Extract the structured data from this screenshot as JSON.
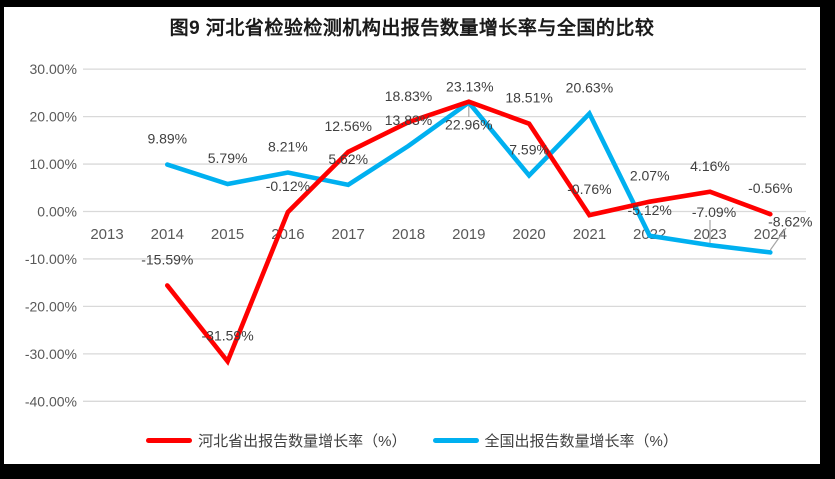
{
  "chart_data": {
    "type": "line",
    "title": "图9 河北省检验检测机构出报告数量增长率与全国的比较",
    "categories": [
      "2013",
      "2014",
      "2015",
      "2016",
      "2017",
      "2018",
      "2019",
      "2020",
      "2021",
      "2022",
      "2023",
      "2024"
    ],
    "series": [
      {
        "name": "河北省出报告数量增长率（%）",
        "color": "#FF0000",
        "values": [
          null,
          -15.59,
          -31.59,
          -0.12,
          12.56,
          18.83,
          23.13,
          18.51,
          -0.76,
          2.07,
          4.16,
          -0.56
        ],
        "labels": [
          "",
          "-15.59%",
          "-31.59%",
          "-0.12%",
          "12.56%",
          "18.83%",
          "23.13%",
          "18.51%",
          "-0.76%",
          "2.07%",
          "4.16%",
          "-0.56%"
        ]
      },
      {
        "name": "全国出报告数量增长率（%）",
        "color": "#00B0F0",
        "values": [
          null,
          9.89,
          5.79,
          8.21,
          5.62,
          13.83,
          22.96,
          7.59,
          20.63,
          -5.12,
          -7.09,
          -8.62
        ],
        "labels": [
          "",
          "9.89%",
          "5.79%",
          "8.21%",
          "5.62%",
          "13.83%",
          "22.96%",
          "7.59%",
          "20.63%",
          "-5.12%",
          "-7.09%",
          "-8.62%"
        ]
      }
    ],
    "y_axis": {
      "min": -40,
      "max": 30,
      "ticks": [
        {
          "label": "30.00%",
          "value": 30
        },
        {
          "label": "20.00%",
          "value": 20
        },
        {
          "label": "10.00%",
          "value": 10
        },
        {
          "label": "0.00%",
          "value": 0
        },
        {
          "label": "-10.00%",
          "value": -10
        },
        {
          "label": "-20.00%",
          "value": -20
        },
        {
          "label": "-30.00%",
          "value": -30
        },
        {
          "label": "-40.00%",
          "value": -40
        }
      ]
    },
    "grid": true,
    "data_labels": true,
    "legend_position": "bottom"
  },
  "colors": {
    "hebei_line": "#FF0000",
    "national_line": "#00B0F0",
    "gridline": "#D9D9D9",
    "axis_text": "#595959",
    "data_label_text": "#404040",
    "leader_line": "#A6A6A6",
    "frame_border": "#000000",
    "background": "#FFFFFF"
  }
}
